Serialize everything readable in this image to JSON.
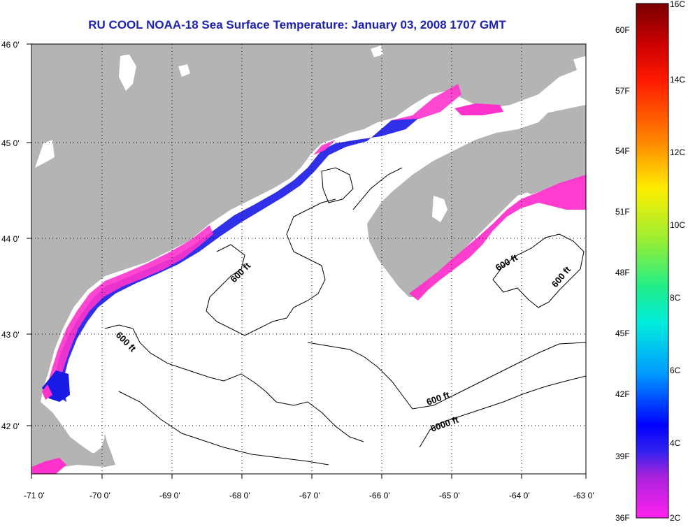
{
  "title": "RU COOL  NOAA-18  Sea Surface Temperature:  January 03, 2008 1707 GMT",
  "lat_labels": [
    "46 0'",
    "45 0'",
    "44 0'",
    "43 0'",
    "42 0'"
  ],
  "lon_labels": [
    "-71 0'",
    "-70 0'",
    "-69 0'",
    "-68 0'",
    "-67 0'",
    "-66 0'",
    "-65 0'",
    "-64 0'",
    "-63 0'"
  ],
  "contour_labels": [
    "600 ft",
    "600 ft",
    "600 ft",
    "600 ft",
    "600 ft",
    "6000 ft"
  ],
  "colorbar": {
    "celsius_labels": [
      "16C",
      "14C",
      "12C",
      "10C",
      "8C",
      "6C",
      "4C",
      "2C"
    ],
    "fahrenheit_labels": [
      "60F",
      "57F",
      "54F",
      "51F",
      "48F",
      "45F",
      "42F",
      "39F",
      "36F"
    ]
  },
  "colors": {
    "land": "#b4b4b4",
    "ocean": "#ffffff",
    "title": "#1e22b4",
    "cold_magenta": "#ff33cc",
    "cold_blue": "#1a1ae6"
  }
}
